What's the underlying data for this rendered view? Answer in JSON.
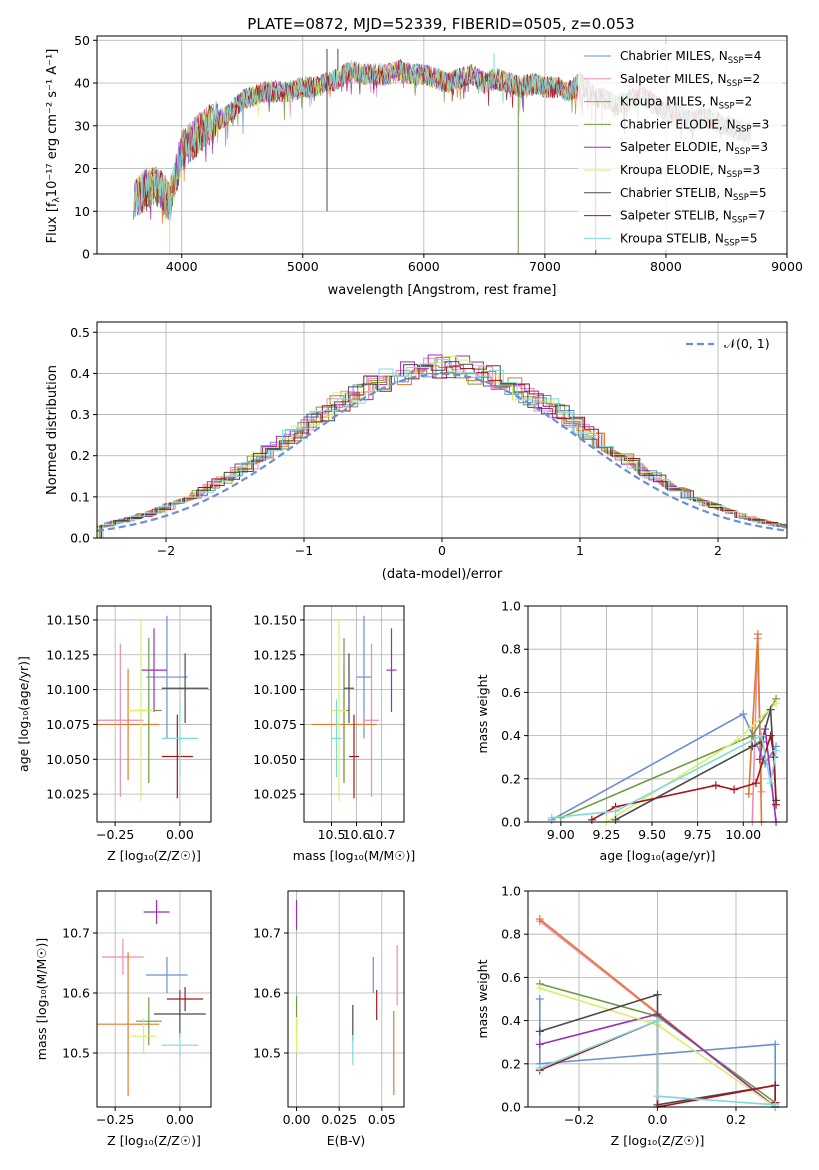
{
  "figure": {
    "title": "PLATE=0872, MJD=52339, FIBERID=0505, z=0.053"
  },
  "legend_entries": [
    {
      "base": "Chabrier MILES, N",
      "sub": "SSP",
      "tail": "=4",
      "color": "#6a8fd6"
    },
    {
      "base": "Salpeter MILES, N",
      "sub": "SSP",
      "tail": "=2",
      "color": "#f08ab4"
    },
    {
      "base": "Kroupa MILES, N",
      "sub": "SSP",
      "tail": "=2",
      "color": "#e07b2a"
    },
    {
      "base": "Chabrier ELODIE, N",
      "sub": "SSP",
      "tail": "=3",
      "color": "#6f9a46"
    },
    {
      "base": "Salpeter ELODIE, N",
      "sub": "SSP",
      "tail": "=3",
      "color": "#9a2fb8"
    },
    {
      "base": "Kroupa ELODIE, N",
      "sub": "SSP",
      "tail": "=3",
      "color": "#d8ef6a"
    },
    {
      "base": "Chabrier STELIB, N",
      "sub": "SSP",
      "tail": "=5",
      "color": "#4a4a4a"
    },
    {
      "base": "Salpeter STELIB, N",
      "sub": "SSP",
      "tail": "=7",
      "color": "#a3161c"
    },
    {
      "base": "Kroupa STELIB, N",
      "sub": "SSP",
      "tail": "=5",
      "color": "#7fdadf"
    }
  ],
  "chart_data": [
    {
      "id": "spectrum",
      "type": "line",
      "xlabel": "wavelength [Angstrom, rest frame]",
      "ylabel_main": "Flux [f",
      "ylabel_sub": "λ",
      "ylabel_rest": "10⁻¹⁷ erg cm⁻² s⁻¹ A⁻¹]",
      "xlim": [
        3300,
        9000
      ],
      "ylim": [
        0,
        51
      ],
      "xticks": [
        "4000",
        "5000",
        "6000",
        "7000",
        "8000",
        "9000"
      ],
      "yticks": [
        "0",
        "10",
        "20",
        "30",
        "40",
        "50"
      ],
      "envelope": {
        "x": [
          3600,
          3700,
          3800,
          3900,
          4000,
          4100,
          4200,
          4300,
          4400,
          4500,
          4600,
          4700,
          4800,
          4900,
          5000,
          5100,
          5200,
          5300,
          5400,
          5500,
          5600,
          5700,
          5800,
          5900,
          6000,
          6100,
          6200,
          6300,
          6400,
          6500,
          6600,
          6700,
          6800,
          6900,
          7000,
          7100,
          7200,
          7300,
          7400,
          7500,
          7600,
          7700,
          7800,
          7900,
          8000,
          8100,
          8200,
          8300,
          8400,
          8500,
          8600,
          8700
        ],
        "y": [
          13,
          15,
          16,
          12,
          24,
          27,
          30,
          31,
          33,
          36,
          37,
          38,
          38,
          38,
          39,
          39,
          40,
          41,
          43,
          42,
          42,
          42,
          43,
          42,
          42,
          41,
          40,
          41,
          42,
          40,
          41,
          40,
          39,
          40,
          39,
          39,
          38,
          40,
          37,
          36,
          35,
          36,
          37,
          35,
          33,
          33,
          31,
          32,
          31,
          30,
          29,
          28
        ]
      },
      "grid": true
    },
    {
      "id": "residual-histogram",
      "type": "histogram",
      "xlabel": "(data-model)/error",
      "ylabel": "Normed distribution",
      "xlim": [
        -2.5,
        2.5
      ],
      "ylim": [
        0,
        0.525
      ],
      "xticks": [
        "−2",
        "−1",
        "0",
        "1",
        "2"
      ],
      "yticks": [
        "0.0",
        "0.1",
        "0.2",
        "0.3",
        "0.4",
        "0.5"
      ],
      "bin_width": 0.1,
      "gaussian_label": "𝒩(0, 1)",
      "gaussian_color": "#6a8fd6",
      "grid": true
    },
    {
      "id": "age-vs-z",
      "type": "scatter-errorbar",
      "xlabel": "Z [log₁₀(Z/Z☉)]",
      "ylabel": "age  [log₁₀(age/yr)]",
      "xlim": [
        -0.32,
        0.12
      ],
      "ylim": [
        10.005,
        10.16
      ],
      "xticks": [
        {
          "v": -0.25,
          "t": "−0.25"
        },
        {
          "v": 0,
          "t": "0.00"
        }
      ],
      "yticks": [
        {
          "v": 10.025,
          "t": "10.025"
        },
        {
          "v": 10.05,
          "t": "10.050"
        },
        {
          "v": 10.075,
          "t": "10.075"
        },
        {
          "v": 10.1,
          "t": "10.100"
        },
        {
          "v": 10.125,
          "t": "10.125"
        },
        {
          "v": 10.15,
          "t": "10.150"
        }
      ],
      "points": [
        {
          "x": -0.05,
          "y": 10.109,
          "xerr": 0.08,
          "yerr": 0.044,
          "s": 0
        },
        {
          "x": -0.23,
          "y": 10.078,
          "xerr": 0.09,
          "yerr": 0.055,
          "s": 1
        },
        {
          "x": -0.2,
          "y": 10.075,
          "xerr": 0.12,
          "yerr": 0.04,
          "s": 2
        },
        {
          "x": -0.12,
          "y": 10.085,
          "xerr": 0.05,
          "yerr": 0.052,
          "s": 3
        },
        {
          "x": -0.1,
          "y": 10.114,
          "xerr": 0.05,
          "yerr": 0.03,
          "s": 4
        },
        {
          "x": -0.15,
          "y": 10.085,
          "xerr": 0.05,
          "yerr": 0.065,
          "s": 5
        },
        {
          "x": 0.02,
          "y": 10.101,
          "xerr": 0.09,
          "yerr": 0.025,
          "s": 6
        },
        {
          "x": -0.01,
          "y": 10.052,
          "xerr": 0.06,
          "yerr": 0.03,
          "s": 7
        },
        {
          "x": 0.0,
          "y": 10.065,
          "xerr": 0.07,
          "yerr": 0.028,
          "s": 8
        }
      ]
    },
    {
      "id": "age-vs-mass",
      "type": "scatter-errorbar",
      "xlabel": "mass [log₁₀(M/M☉)]",
      "xlim": [
        10.39,
        10.79
      ],
      "ylim": [
        10.005,
        10.16
      ],
      "xticks": [
        {
          "v": 10.5,
          "t": "10.5"
        },
        {
          "v": 10.6,
          "t": "10.6"
        },
        {
          "v": 10.7,
          "t": "10.7"
        }
      ],
      "yticks": [
        {
          "v": 10.025,
          "t": "10.025"
        },
        {
          "v": 10.05,
          "t": "10.050"
        },
        {
          "v": 10.075,
          "t": "10.075"
        },
        {
          "v": 10.1,
          "t": "10.100"
        },
        {
          "v": 10.125,
          "t": "10.125"
        },
        {
          "v": 10.15,
          "t": "10.150"
        }
      ],
      "points": [
        {
          "x": 10.63,
          "y": 10.109,
          "xerr": 0.03,
          "yerr": 0.044,
          "s": 0
        },
        {
          "x": 10.66,
          "y": 10.078,
          "xerr": 0.03,
          "yerr": 0.055,
          "s": 1
        },
        {
          "x": 10.55,
          "y": 10.075,
          "xerr": 0.13,
          "yerr": 0.04,
          "s": 2
        },
        {
          "x": 10.55,
          "y": 10.085,
          "xerr": 0.02,
          "yerr": 0.052,
          "s": 3
        },
        {
          "x": 10.74,
          "y": 10.114,
          "xerr": 0.02,
          "yerr": 0.03,
          "s": 4
        },
        {
          "x": 10.53,
          "y": 10.085,
          "xerr": 0.03,
          "yerr": 0.065,
          "s": 5
        },
        {
          "x": 10.57,
          "y": 10.101,
          "xerr": 0.02,
          "yerr": 0.025,
          "s": 6
        },
        {
          "x": 10.59,
          "y": 10.052,
          "xerr": 0.02,
          "yerr": 0.03,
          "s": 7
        },
        {
          "x": 10.52,
          "y": 10.065,
          "xerr": 0.02,
          "yerr": 0.028,
          "s": 8
        }
      ]
    },
    {
      "id": "mass-weight-vs-age",
      "type": "line",
      "xlabel": "age  [log₁₀(age/yr)]",
      "ylabel": "mass weight",
      "xlim": [
        8.82,
        10.24
      ],
      "ylim": [
        0,
        1.0
      ],
      "xticks": [
        {
          "v": 9.0,
          "t": "9.00"
        },
        {
          "v": 9.25,
          "t": "9.25"
        },
        {
          "v": 9.5,
          "t": "9.50"
        },
        {
          "v": 9.75,
          "t": "9.75"
        },
        {
          "v": 10.0,
          "t": "10.00"
        }
      ],
      "yticks": [
        {
          "v": 0,
          "t": "0.0"
        },
        {
          "v": 0.2,
          "t": "0.2"
        },
        {
          "v": 0.4,
          "t": "0.4"
        },
        {
          "v": 0.6,
          "t": "0.6"
        },
        {
          "v": 0.8,
          "t": "0.8"
        },
        {
          "v": 1.0,
          "t": "1.0"
        }
      ],
      "series": [
        {
          "s": 0,
          "x": [
            8.95,
            10.0,
            10.12,
            10.18
          ],
          "y": [
            0.01,
            0.5,
            0.27,
            0.35
          ]
        },
        {
          "s": 1,
          "x": [
            10.05,
            10.08,
            10.1
          ],
          "y": [
            0.0,
            0.85,
            0.14
          ]
        },
        {
          "s": 2,
          "x": [
            10.03,
            10.08,
            10.1
          ],
          "y": [
            0.13,
            0.87,
            0.0
          ]
        },
        {
          "s": 3,
          "x": [
            9.0,
            10.05,
            10.18
          ],
          "y": [
            0.02,
            0.4,
            0.57
          ]
        },
        {
          "s": 4,
          "x": [
            10.09,
            10.12,
            10.18
          ],
          "y": [
            0.29,
            0.43,
            0.0
          ]
        },
        {
          "s": 5,
          "x": [
            9.25,
            9.97,
            10.18
          ],
          "y": [
            0.0,
            0.38,
            0.55
          ]
        },
        {
          "s": 6,
          "x": [
            9.3,
            10.05,
            10.1,
            10.15,
            10.18
          ],
          "y": [
            0.01,
            0.35,
            0.37,
            0.52,
            0.1
          ]
        },
        {
          "s": 7,
          "x": [
            9.17,
            9.3,
            9.85,
            9.95,
            10.07,
            10.15,
            10.17,
            10.18
          ],
          "y": [
            0.01,
            0.07,
            0.17,
            0.15,
            0.18,
            0.4,
            0.3,
            0.08
          ]
        },
        {
          "s": 8,
          "x": [
            8.95,
            9.3,
            10.1,
            10.15,
            10.18
          ],
          "y": [
            0.02,
            0.05,
            0.4,
            0.18,
            0.33
          ]
        }
      ],
      "grid": true
    },
    {
      "id": "mass-vs-z",
      "type": "scatter-errorbar",
      "xlabel": "Z [log₁₀(Z/Z☉)]",
      "ylabel": "mass [log₁₀(M/M☉)]",
      "xlim": [
        -0.32,
        0.12
      ],
      "ylim": [
        10.41,
        10.77
      ],
      "xticks": [
        {
          "v": -0.25,
          "t": "−0.25"
        },
        {
          "v": 0,
          "t": "0.00"
        }
      ],
      "yticks": [
        {
          "v": 10.5,
          "t": "10.5"
        },
        {
          "v": 10.6,
          "t": "10.6"
        },
        {
          "v": 10.7,
          "t": "10.7"
        }
      ],
      "points": [
        {
          "x": -0.05,
          "y": 10.63,
          "xerr": 0.08,
          "yerr": 0.03,
          "s": 0
        },
        {
          "x": -0.22,
          "y": 10.66,
          "xerr": 0.08,
          "yerr": 0.03,
          "s": 1
        },
        {
          "x": -0.2,
          "y": 10.548,
          "xerr": 0.12,
          "yerr": 0.12,
          "s": 2
        },
        {
          "x": -0.12,
          "y": 10.553,
          "xerr": 0.05,
          "yerr": 0.04,
          "s": 3
        },
        {
          "x": -0.09,
          "y": 10.735,
          "xerr": 0.05,
          "yerr": 0.02,
          "s": 4
        },
        {
          "x": -0.14,
          "y": 10.528,
          "xerr": 0.05,
          "yerr": 0.03,
          "s": 5
        },
        {
          "x": 0.0,
          "y": 10.565,
          "xerr": 0.1,
          "yerr": 0.04,
          "s": 6
        },
        {
          "x": 0.02,
          "y": 10.59,
          "xerr": 0.07,
          "yerr": 0.02,
          "s": 7
        },
        {
          "x": 0.0,
          "y": 10.513,
          "xerr": 0.07,
          "yerr": 0.02,
          "s": 8
        }
      ]
    },
    {
      "id": "mass-vs-ebv",
      "type": "scatter-errorbar",
      "xlabel": "E(B-V)",
      "xlim": [
        -0.005,
        0.063
      ],
      "ylim": [
        10.41,
        10.77
      ],
      "xticks": [
        {
          "v": 0,
          "t": "0.00"
        },
        {
          "v": 0.025,
          "t": "0.025"
        },
        {
          "v": 0.05,
          "t": "0.05"
        }
      ],
      "yticks": [
        {
          "v": 10.5,
          "t": "10.5"
        },
        {
          "v": 10.6,
          "t": "10.6"
        },
        {
          "v": 10.7,
          "t": "10.7"
        }
      ],
      "points": [
        {
          "x": 0.045,
          "y": 10.63,
          "xerr": 0,
          "yerr": 0.03,
          "s": 0
        },
        {
          "x": 0.059,
          "y": 10.63,
          "xerr": 0,
          "yerr": 0.05,
          "s": 1
        },
        {
          "x": 0.057,
          "y": 10.5,
          "xerr": 0,
          "yerr": 0.07,
          "s": 2
        },
        {
          "x": 0.0,
          "y": 10.565,
          "xerr": 0,
          "yerr": 0.03,
          "s": 3
        },
        {
          "x": 0.0,
          "y": 10.73,
          "xerr": 0,
          "yerr": 0.025,
          "s": 4
        },
        {
          "x": 0.0,
          "y": 10.53,
          "xerr": 0,
          "yerr": 0.03,
          "s": 5
        },
        {
          "x": 0.033,
          "y": 10.55,
          "xerr": 0,
          "yerr": 0.03,
          "s": 6
        },
        {
          "x": 0.047,
          "y": 10.58,
          "xerr": 0,
          "yerr": 0.025,
          "s": 7
        },
        {
          "x": 0.033,
          "y": 10.505,
          "xerr": 0,
          "yerr": 0.025,
          "s": 8
        }
      ]
    },
    {
      "id": "mass-weight-vs-z",
      "type": "line",
      "xlabel": "Z [log₁₀(Z/Z☉)]",
      "ylabel": "mass weight",
      "xlim": [
        -0.33,
        0.33
      ],
      "ylim": [
        0,
        1.0
      ],
      "xticks": [
        {
          "v": -0.2,
          "t": "−0.2"
        },
        {
          "v": 0,
          "t": "0.0"
        },
        {
          "v": 0.2,
          "t": "0.2"
        }
      ],
      "yticks": [
        {
          "v": 0,
          "t": "0.0"
        },
        {
          "v": 0.2,
          "t": "0.2"
        },
        {
          "v": 0.4,
          "t": "0.4"
        },
        {
          "v": 0.6,
          "t": "0.6"
        },
        {
          "v": 0.8,
          "t": "0.8"
        },
        {
          "v": 1.0,
          "t": "1.0"
        }
      ],
      "series": [
        {
          "s": 0,
          "x": [
            -0.3,
            -0.3,
            0.3,
            0.3
          ],
          "y": [
            0.5,
            0.2,
            0.29,
            0.0
          ]
        },
        {
          "s": 1,
          "x": [
            -0.3,
            0.3
          ],
          "y": [
            0.86,
            0.0
          ]
        },
        {
          "s": 2,
          "x": [
            -0.3,
            0.3
          ],
          "y": [
            0.87,
            0.0
          ]
        },
        {
          "s": 3,
          "x": [
            -0.3,
            0.0,
            0.3
          ],
          "y": [
            0.57,
            0.42,
            0.02
          ]
        },
        {
          "s": 4,
          "x": [
            -0.3,
            0.0,
            0.3
          ],
          "y": [
            0.29,
            0.43,
            0.0
          ]
        },
        {
          "s": 5,
          "x": [
            -0.3,
            0.0,
            0.3
          ],
          "y": [
            0.55,
            0.38,
            0.0
          ]
        },
        {
          "s": 6,
          "x": [
            -0.3,
            0.0,
            0.0,
            0.3,
            0.3
          ],
          "y": [
            0.35,
            0.52,
            0.01,
            0.1,
            0.0
          ]
        },
        {
          "s": 7,
          "x": [
            -0.3,
            0.0,
            0.0,
            0.3,
            0.3
          ],
          "y": [
            0.17,
            0.4,
            0.0,
            0.1,
            0.02
          ]
        },
        {
          "s": 8,
          "x": [
            -0.3,
            0.0,
            0.0,
            0.3,
            0.3
          ],
          "y": [
            0.18,
            0.4,
            0.05,
            0.01,
            0.0
          ]
        }
      ],
      "grid": true
    }
  ]
}
